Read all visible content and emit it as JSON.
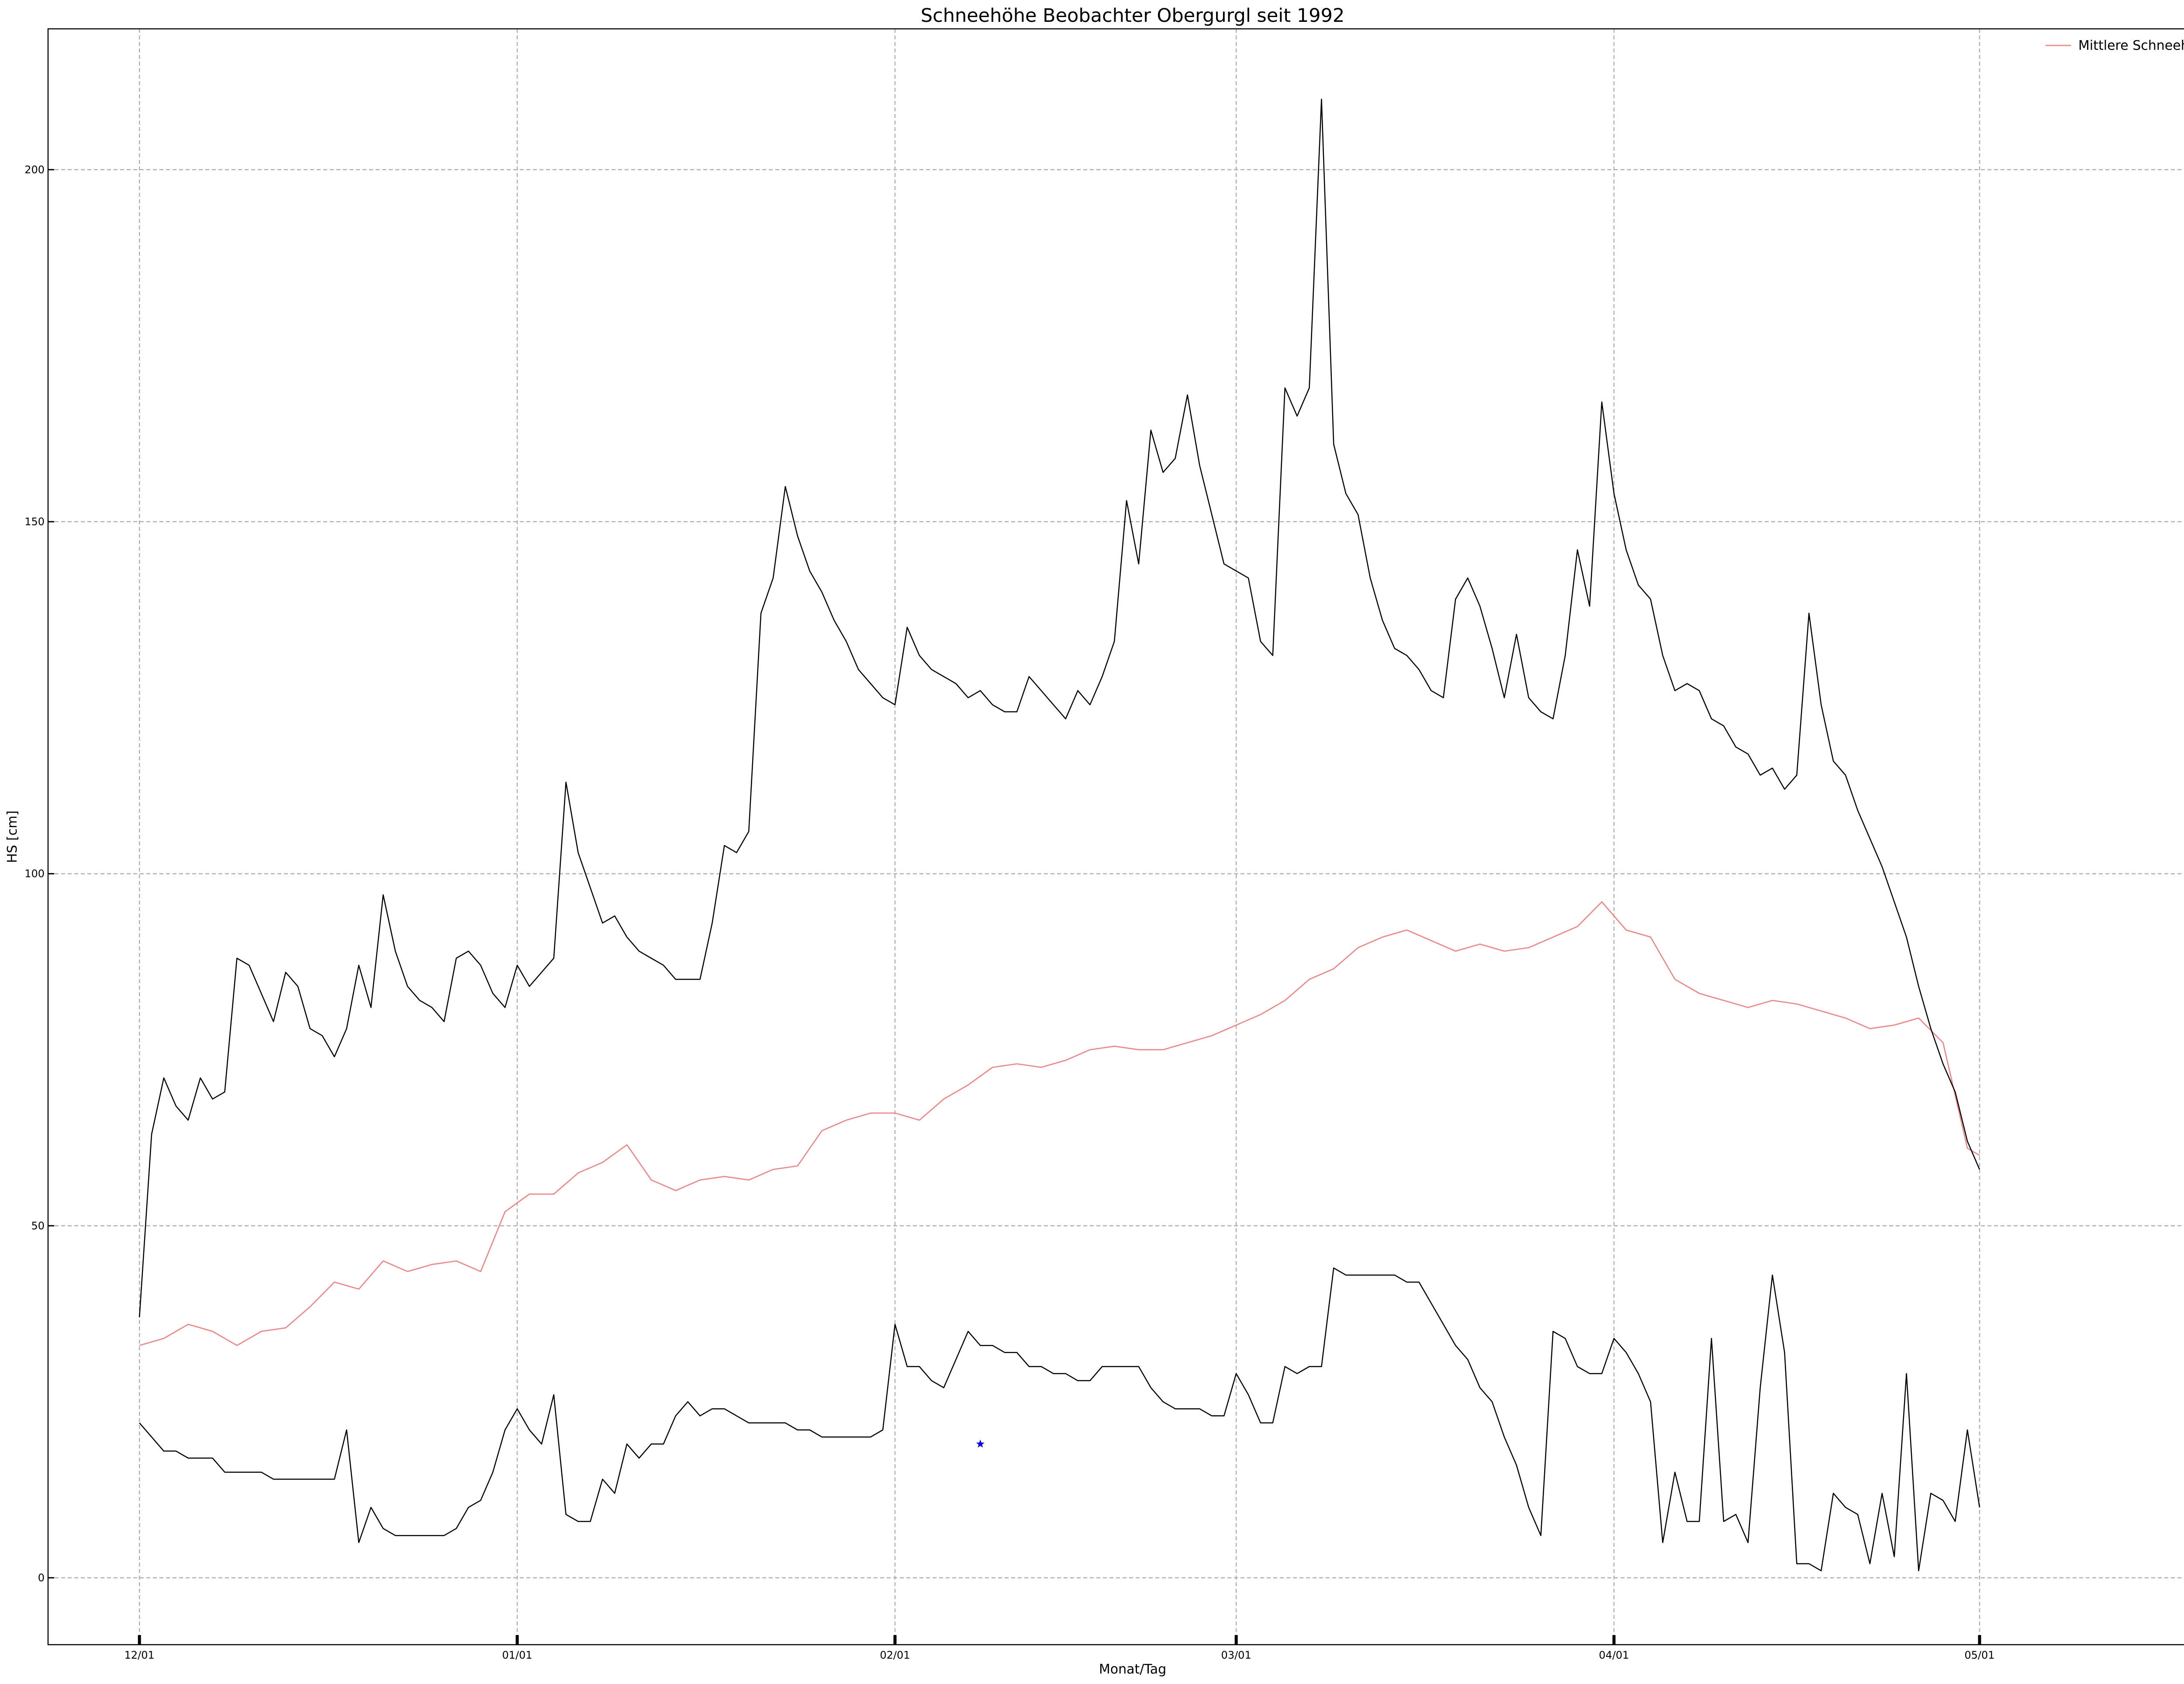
{
  "chart_data": {
    "type": "line",
    "title": "Schneehöhe Beobachter Obergurgl seit 1992",
    "xlabel": "Monat/Tag",
    "ylabel": "HS [cm]",
    "x_start": "12/01",
    "x_end": "05/01",
    "xlim": [
      -7.5,
      170.5
    ],
    "ylim": [
      -9.5,
      220
    ],
    "grid": true,
    "legend_position": "top-right",
    "xticks": [
      {
        "x": 0,
        "label": "12/01"
      },
      {
        "x": 31,
        "label": "01/01"
      },
      {
        "x": 62,
        "label": "02/01"
      },
      {
        "x": 90,
        "label": "03/01"
      },
      {
        "x": 121,
        "label": "04/01"
      },
      {
        "x": 151,
        "label": "05/01"
      }
    ],
    "yticks": [
      0,
      50,
      100,
      150,
      200
    ],
    "series": [
      {
        "name": "Mittlere Schneehöhe",
        "color": "#ff7b7b",
        "in_legend": true,
        "x": [
          0,
          2,
          4,
          6,
          8,
          10,
          12,
          14,
          16,
          18,
          20,
          22,
          24,
          26,
          28,
          30,
          32,
          34,
          36,
          38,
          40,
          42,
          44,
          46,
          48,
          50,
          52,
          54,
          56,
          58,
          60,
          62,
          64,
          66,
          68,
          70,
          72,
          74,
          76,
          78,
          80,
          82,
          84,
          86,
          88,
          90,
          92,
          94,
          96,
          98,
          100,
          102,
          104,
          106,
          108,
          110,
          112,
          114,
          116,
          118,
          120,
          122,
          124,
          126,
          128,
          130,
          132,
          134,
          136,
          138,
          140,
          142,
          144,
          146,
          148,
          150,
          151
        ],
        "values": [
          33,
          34,
          36,
          35,
          33,
          35,
          35.5,
          38.5,
          42,
          41,
          45,
          43.5,
          44.5,
          45,
          43.5,
          52,
          54.5,
          54.5,
          57.5,
          59,
          61.5,
          56.5,
          55,
          56.5,
          57,
          56.5,
          58,
          58.5,
          63.5,
          65,
          66,
          66,
          65,
          68,
          70,
          72.5,
          73,
          72.5,
          73.5,
          75,
          75.5,
          75,
          75,
          76,
          77,
          78.5,
          80,
          82,
          85,
          86.5,
          89.5,
          91,
          92,
          90.5,
          89,
          90,
          89,
          89.5,
          91,
          92.5,
          96,
          92,
          91,
          85,
          83,
          82,
          81,
          82,
          81.5,
          80.5,
          79.5,
          78,
          78.5,
          79.5,
          76,
          61,
          60
        ]
      },
      {
        "name": "",
        "color": "#000000",
        "in_legend": false,
        "x": [
          0,
          1,
          2,
          3,
          4,
          5,
          6,
          7,
          8,
          9,
          10,
          11,
          12,
          13,
          14,
          15,
          16,
          17,
          18,
          19,
          20,
          21,
          22,
          23,
          24,
          25,
          26,
          27,
          28,
          29,
          30,
          31,
          32,
          33,
          34,
          35,
          36,
          37,
          38,
          39,
          40,
          41,
          42,
          43,
          44,
          45,
          46,
          47,
          48,
          49,
          50,
          51,
          52,
          53,
          54,
          55,
          56,
          57,
          58,
          59,
          60,
          61,
          62,
          63,
          64,
          65,
          66,
          67,
          68,
          69,
          70,
          71,
          72,
          73,
          74,
          75,
          76,
          77,
          78,
          79,
          80,
          81,
          82,
          83,
          84,
          85,
          86,
          87,
          88,
          89,
          90,
          91,
          92,
          93,
          94,
          95,
          96,
          97,
          98,
          99,
          100,
          101,
          102,
          103,
          104,
          105,
          106,
          107,
          108,
          109,
          110,
          111,
          112,
          113,
          114,
          115,
          116,
          117,
          118,
          119,
          120,
          121,
          122,
          123,
          124,
          125,
          126,
          127,
          128,
          129,
          130,
          131,
          132,
          133,
          134,
          135,
          136,
          137,
          138,
          139,
          140,
          141,
          142,
          143,
          144,
          145,
          146,
          147,
          148,
          149,
          150,
          151
        ],
        "values": [
          37,
          63,
          71,
          67,
          65,
          71,
          68,
          69,
          88,
          87,
          83,
          79,
          86,
          84,
          78,
          77,
          74,
          78,
          87,
          81,
          97,
          89,
          84,
          82,
          81,
          79,
          88,
          89,
          87,
          83,
          81,
          87,
          84,
          86,
          88,
          113,
          103,
          98,
          93,
          94,
          91,
          89,
          88,
          87,
          85,
          85,
          85,
          93,
          104,
          103,
          106,
          137,
          142,
          155,
          148,
          143,
          140,
          136,
          133,
          129,
          127,
          125,
          124,
          135,
          131,
          129,
          128,
          127,
          125,
          126,
          124,
          123,
          123,
          128,
          126,
          124,
          122,
          126,
          124,
          128,
          133,
          153,
          144,
          163,
          157,
          159,
          168,
          158,
          151,
          144,
          143,
          142,
          133,
          131,
          169,
          165,
          169,
          210,
          161,
          154,
          151,
          142,
          136,
          132,
          131,
          129,
          126,
          125,
          139,
          142,
          138,
          132,
          125,
          134,
          125,
          123,
          122,
          131,
          146,
          138,
          167,
          154,
          146,
          141,
          139,
          131,
          126,
          127,
          126,
          122,
          121,
          118,
          117,
          114,
          115,
          112,
          114,
          137,
          124,
          116,
          114,
          109,
          105,
          101,
          96,
          91,
          84,
          78,
          73,
          69,
          62,
          58
        ]
      },
      {
        "name": "",
        "color": "#000000",
        "in_legend": false,
        "x": [
          0,
          1,
          2,
          3,
          4,
          5,
          6,
          7,
          8,
          9,
          10,
          11,
          12,
          13,
          14,
          15,
          16,
          17,
          18,
          19,
          20,
          21,
          22,
          23,
          24,
          25,
          26,
          27,
          28,
          29,
          30,
          31,
          32,
          33,
          34,
          35,
          36,
          37,
          38,
          39,
          40,
          41,
          42,
          43,
          44,
          45,
          46,
          47,
          48,
          49,
          50,
          51,
          52,
          53,
          54,
          55,
          56,
          57,
          58,
          59,
          60,
          61,
          62,
          63,
          64,
          65,
          66,
          67,
          68,
          69,
          70,
          71,
          72,
          73,
          74,
          75,
          76,
          77,
          78,
          79,
          80,
          81,
          82,
          83,
          84,
          85,
          86,
          87,
          88,
          89,
          90,
          91,
          92,
          93,
          94,
          95,
          96,
          97,
          98,
          99,
          100,
          101,
          102,
          103,
          104,
          105,
          106,
          107,
          108,
          109,
          110,
          111,
          112,
          113,
          114,
          115,
          116,
          117,
          118,
          119,
          120,
          121,
          122,
          123,
          124,
          125,
          126,
          127,
          128,
          129,
          130,
          131,
          132,
          133,
          134,
          135,
          136,
          137,
          138,
          139,
          140,
          141,
          142,
          143,
          144,
          145,
          146,
          147,
          148,
          149,
          150,
          151
        ],
        "values": [
          22,
          20,
          18,
          18,
          17,
          17,
          17,
          15,
          15,
          15,
          15,
          14,
          14,
          14,
          14,
          14,
          14,
          21,
          5,
          10,
          7,
          6,
          6,
          6,
          6,
          6,
          7,
          10,
          11,
          15,
          21,
          24,
          21,
          19,
          26,
          9,
          8,
          8,
          14,
          12,
          19,
          17,
          19,
          19,
          23,
          25,
          23,
          24,
          24,
          23,
          22,
          22,
          22,
          22,
          21,
          21,
          20,
          20,
          20,
          20,
          20,
          21,
          36,
          30,
          30,
          28,
          27,
          31,
          35,
          33,
          33,
          32,
          32,
          30,
          30,
          29,
          29,
          28,
          28,
          30,
          30,
          30,
          30,
          27,
          25,
          24,
          24,
          24,
          23,
          23,
          29,
          26,
          22,
          22,
          30,
          29,
          30,
          30,
          44,
          43,
          43,
          43,
          43,
          43,
          42,
          42,
          39,
          36,
          33,
          31,
          27,
          25,
          20,
          16,
          10,
          6,
          35,
          34,
          30,
          29,
          29,
          34,
          32,
          29,
          25,
          5,
          15,
          8,
          8,
          34,
          8,
          9,
          5,
          27,
          43,
          32,
          2,
          2,
          1,
          12,
          10,
          9,
          2,
          12,
          3,
          29,
          1,
          12,
          11,
          8,
          21,
          10
        ]
      }
    ],
    "marker": {
      "x": 69,
      "y": 19,
      "symbol": "star",
      "color": "#0000ff"
    }
  }
}
